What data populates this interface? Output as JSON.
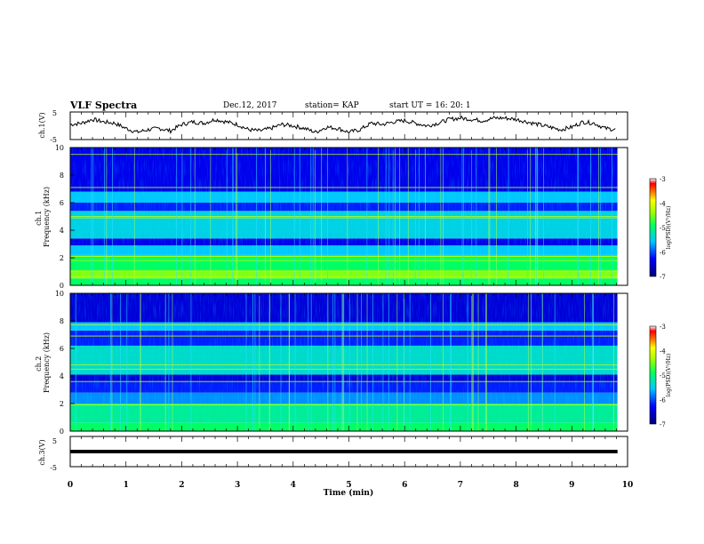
{
  "header": {
    "title": "VLF Spectra",
    "date": "Dec.12, 2017",
    "station": "station= KAP",
    "start": "start  UT =   16: 20: 1"
  },
  "chart_data": [
    {
      "type": "line",
      "panel": "ch1",
      "ylabel": "ch.1(V)",
      "ylim": [
        -5,
        5
      ],
      "yticks": [
        "5",
        "-5"
      ],
      "xlim": [
        0,
        10
      ],
      "series": [
        {
          "x": [
            0,
            0.2,
            0.4,
            0.6,
            0.8,
            1.0,
            1.2,
            1.4,
            1.6,
            1.8,
            2.0,
            2.2,
            2.4,
            2.6,
            2.8,
            3.0,
            3.2,
            3.4,
            3.6,
            3.8,
            4.0,
            4.2,
            4.4,
            4.6,
            4.8,
            5.0,
            5.2,
            5.4,
            5.6,
            5.8,
            6.0,
            6.2,
            6.4,
            6.6,
            6.8,
            7.0,
            7.2,
            7.4,
            7.6,
            7.8,
            8.0,
            8.2,
            8.4,
            8.6,
            8.8,
            9.0,
            9.2,
            9.4,
            9.6,
            9.8
          ],
          "values": [
            0.5,
            1.0,
            2.5,
            1.5,
            1.0,
            -1.0,
            -2.5,
            -1.5,
            -1.0,
            -2.0,
            0.5,
            1.5,
            1.0,
            2.5,
            1.5,
            0.5,
            -1.5,
            -2.0,
            -1.0,
            0.5,
            0.0,
            -1.0,
            -2.5,
            -0.5,
            -1.0,
            -2.5,
            -1.5,
            1.0,
            0.5,
            1.5,
            2.0,
            1.0,
            0.0,
            1.0,
            2.5,
            3.0,
            2.5,
            2.0,
            3.0,
            3.0,
            2.5,
            1.5,
            0.5,
            -0.5,
            -1.5,
            -0.5,
            1.5,
            1.0,
            -1.0,
            -1.5
          ]
        }
      ]
    },
    {
      "type": "heatmap",
      "panel": "ch1",
      "ylabel": "ch.1\nFrequency (kHz)",
      "ylim": [
        0,
        10
      ],
      "yticks": [
        "0",
        "2",
        "4",
        "6",
        "8",
        "10"
      ],
      "xlim": [
        0,
        10
      ],
      "colorbar": {
        "label": "log(PSD)(V²/Hz)",
        "range": [
          -7,
          -3
        ],
        "ticks": [
          "-3",
          "-4",
          "-5",
          "-6",
          "-7"
        ]
      },
      "bands_khz": [
        {
          "from": 0.0,
          "to": 0.5,
          "level": -5.0
        },
        {
          "from": 0.5,
          "to": 1.1,
          "level": -4.5
        },
        {
          "from": 1.1,
          "to": 2.2,
          "level": -5.0
        },
        {
          "from": 2.2,
          "to": 2.9,
          "level": -5.6
        },
        {
          "from": 2.9,
          "to": 3.4,
          "level": -6.4
        },
        {
          "from": 3.4,
          "to": 5.4,
          "level": -5.5
        },
        {
          "from": 5.4,
          "to": 6.0,
          "level": -6.2
        },
        {
          "from": 6.0,
          "to": 6.8,
          "level": -5.6
        },
        {
          "from": 6.8,
          "to": 10.0,
          "level": -6.4
        }
      ],
      "lines_khz": [
        0.6,
        1.0,
        1.8,
        2.1,
        4.9,
        5.0,
        7.1,
        9.5
      ]
    },
    {
      "type": "heatmap",
      "panel": "ch2",
      "ylabel": "ch.2\nFrequency (kHz)",
      "ylim": [
        0,
        10
      ],
      "yticks": [
        "0",
        "2",
        "4",
        "6",
        "8",
        "10"
      ],
      "xlim": [
        0,
        10
      ],
      "colorbar": {
        "label": "log(PSD)(V²/Hz)",
        "range": [
          -7,
          -3
        ],
        "ticks": [
          "-3",
          "-4",
          "-5",
          "-6",
          "-7"
        ]
      },
      "bands_khz": [
        {
          "from": 0.0,
          "to": 0.6,
          "level": -5.0
        },
        {
          "from": 0.6,
          "to": 2.0,
          "level": -5.2
        },
        {
          "from": 2.0,
          "to": 2.8,
          "level": -5.8
        },
        {
          "from": 2.8,
          "to": 3.6,
          "level": -6.2
        },
        {
          "from": 3.6,
          "to": 4.1,
          "level": -6.5
        },
        {
          "from": 4.1,
          "to": 6.2,
          "level": -5.4
        },
        {
          "from": 6.2,
          "to": 7.3,
          "level": -6.2
        },
        {
          "from": 7.3,
          "to": 7.9,
          "level": -5.6
        },
        {
          "from": 7.9,
          "to": 10.0,
          "level": -6.5
        }
      ],
      "lines_khz": [
        1.9,
        3.6,
        4.5,
        4.8,
        6.9,
        7.7
      ]
    },
    {
      "type": "line",
      "panel": "ch3",
      "ylabel": "ch.3(V)",
      "ylim": [
        -5,
        5
      ],
      "yticks": [
        "5",
        "-5"
      ],
      "xlim": [
        0,
        10
      ],
      "xlabel": "Time (min)",
      "xticks": [
        "0",
        "1",
        "2",
        "3",
        "4",
        "5",
        "6",
        "7",
        "8",
        "9",
        "10"
      ],
      "series": [
        {
          "x": [
            0,
            9.82
          ],
          "values": [
            0,
            0
          ]
        }
      ]
    }
  ]
}
